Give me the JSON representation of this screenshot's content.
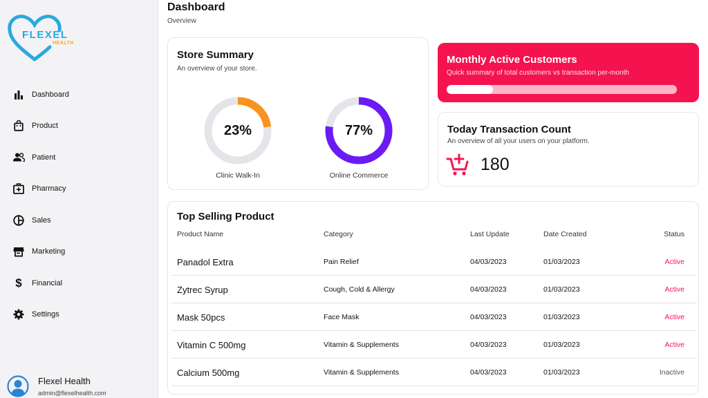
{
  "brand": {
    "name": "FLEXEL",
    "sub": "HEALTH",
    "heart_color": "#2aa8e0",
    "accent_color": "#f5a623"
  },
  "sidebar": {
    "items": [
      {
        "label": "Dashboard",
        "icon": "bar-chart-icon"
      },
      {
        "label": "Product",
        "icon": "shopping-bag-icon"
      },
      {
        "label": "Patient",
        "icon": "people-icon"
      },
      {
        "label": "Pharmacy",
        "icon": "medical-kit-icon"
      },
      {
        "label": "Sales",
        "icon": "pie-chart-icon"
      },
      {
        "label": "Marketing",
        "icon": "storefront-icon"
      },
      {
        "label": "Financial",
        "icon": "dollar-icon"
      },
      {
        "label": "Settings",
        "icon": "gear-icon"
      }
    ],
    "user": {
      "name": "Flexel Health",
      "email": "admin@flexelhealth.com"
    }
  },
  "header": {
    "title": "Dashboard",
    "breadcrumb": "Overview"
  },
  "store_summary": {
    "title": "Store Summary",
    "subtitle": "An overview of your store.",
    "walk_in": {
      "value": "23%",
      "percent": 23,
      "label": "Clinic Walk-In",
      "color": "#f7931e"
    },
    "online": {
      "value": "77%",
      "percent": 77,
      "label": "Online Commerce",
      "color": "#6a1bf5"
    },
    "track_color": "#e4e5e9"
  },
  "monthly_active": {
    "title": "Monthly Active Customers",
    "subtitle": "Quick summary of total customers vs transaction per-month",
    "progress": 0.2,
    "color": "#f5134f"
  },
  "transactions": {
    "title": "Today Transaction Count",
    "subtitle": "An overview of all your users on your platform.",
    "count": "180",
    "icon": "cart-plus-icon",
    "icon_color": "#f5134f"
  },
  "top_selling": {
    "title": "Top Selling Product",
    "columns": [
      "Product Name",
      "Category",
      "Last Update",
      "Date Created",
      "Status"
    ],
    "rows": [
      {
        "name": "Panadol Extra",
        "category": "Pain Relief",
        "last_update": "04/03/2023",
        "created": "01/03/2023",
        "status": "Active"
      },
      {
        "name": "Zytrec Syrup",
        "category": "Cough, Cold & Allergy",
        "last_update": "04/03/2023",
        "created": "01/03/2023",
        "status": "Active"
      },
      {
        "name": "Mask 50pcs",
        "category": "Face Mask",
        "last_update": "04/03/2023",
        "created": "01/03/2023",
        "status": "Active"
      },
      {
        "name": "Vitamin C 500mg",
        "category": "Vitamin & Supplements",
        "last_update": "04/03/2023",
        "created": "01/03/2023",
        "status": "Active"
      },
      {
        "name": "Calcium 500mg",
        "category": "Vitamin & Supplements",
        "last_update": "04/03/2023",
        "created": "01/03/2023",
        "status": "Inactive"
      }
    ],
    "status_colors": {
      "Active": "#f5134f",
      "Inactive": "#555555"
    }
  }
}
